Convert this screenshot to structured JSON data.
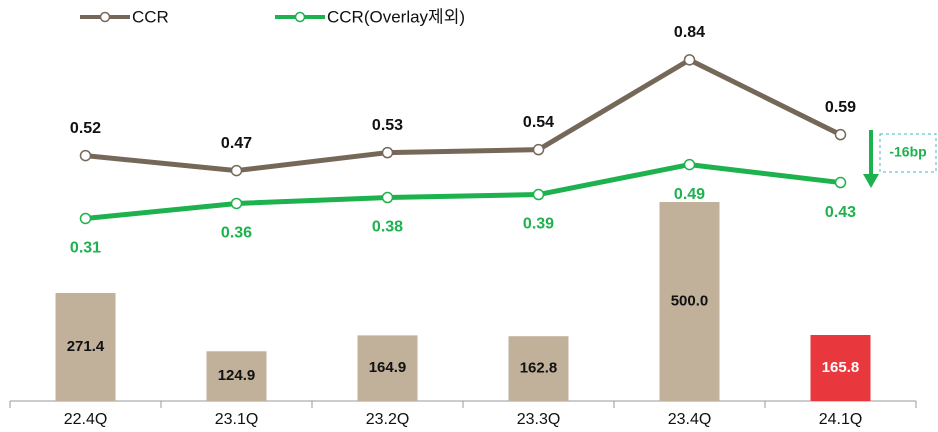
{
  "chart_data": {
    "type": "bar_line",
    "categories": [
      "22.4Q",
      "23.1Q",
      "23.2Q",
      "23.3Q",
      "23.4Q",
      "24.1Q"
    ],
    "ylim": [
      0,
      1000
    ],
    "y2lim": [
      -0.3,
      1.03
    ],
    "series": [
      {
        "type": "bar",
        "values": [
          271.4,
          124.9,
          164.9,
          162.8,
          500,
          165.8
        ],
        "value_labels": [
          "271.4",
          "124.9",
          "164.9",
          "162.8",
          "500.0",
          "165.8"
        ],
        "colors": [
          "#c1b19b",
          "#c1b19b",
          "#c1b19b",
          "#c1b19b",
          "#c1b19b",
          "#e8383d"
        ]
      },
      {
        "type": "line",
        "name": "CCR",
        "color": "#766859",
        "axis": "y2",
        "values": [
          0.52,
          0.47,
          0.53,
          0.54,
          0.84,
          0.59
        ]
      },
      {
        "type": "line",
        "name": "CCR(Overlay제외)",
        "color": "#1db24d",
        "axis": "y2",
        "values": [
          0.31,
          0.36,
          0.38,
          0.39,
          0.49,
          0.43
        ]
      }
    ],
    "annotations": [
      {
        "text": "-16bp"
      }
    ]
  }
}
